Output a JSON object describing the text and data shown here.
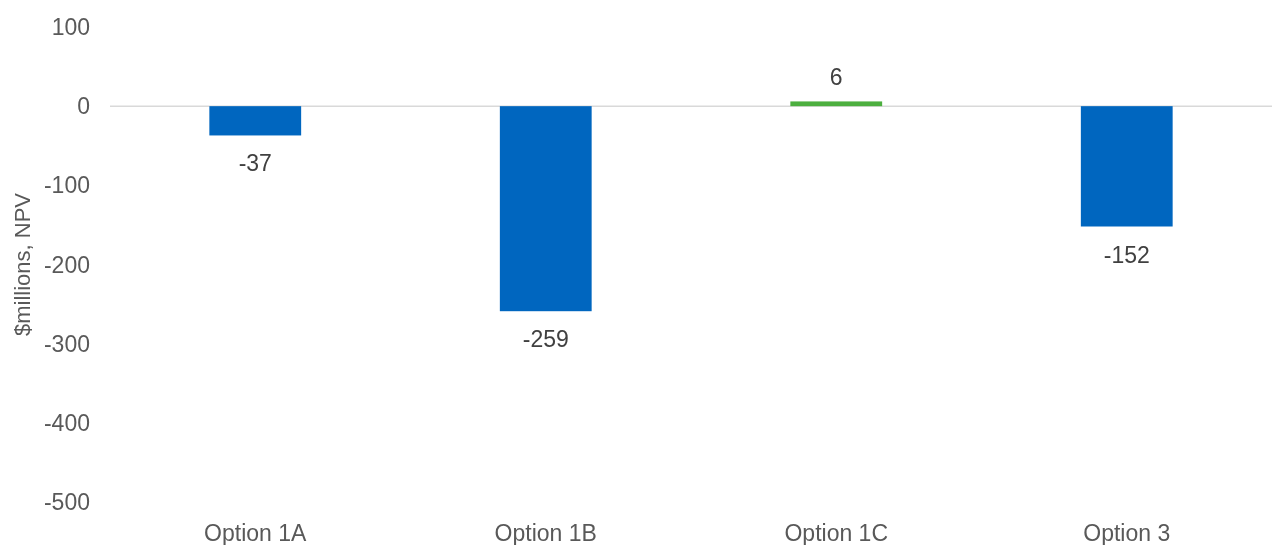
{
  "chart_data": {
    "type": "bar",
    "ylabel": "$millions, NPV",
    "categories": [
      "Option 1A",
      "Option 1B",
      "Option 1C",
      "Option 3"
    ],
    "values": [
      -37,
      -259,
      6,
      -152
    ],
    "colors": [
      "#0066bf",
      "#0066bf",
      "#4caf3f",
      "#0066bf"
    ],
    "ylim": [
      -500,
      100
    ],
    "yticks": [
      -500,
      -400,
      -300,
      -200,
      -100,
      0,
      100
    ],
    "data_labels": true
  }
}
